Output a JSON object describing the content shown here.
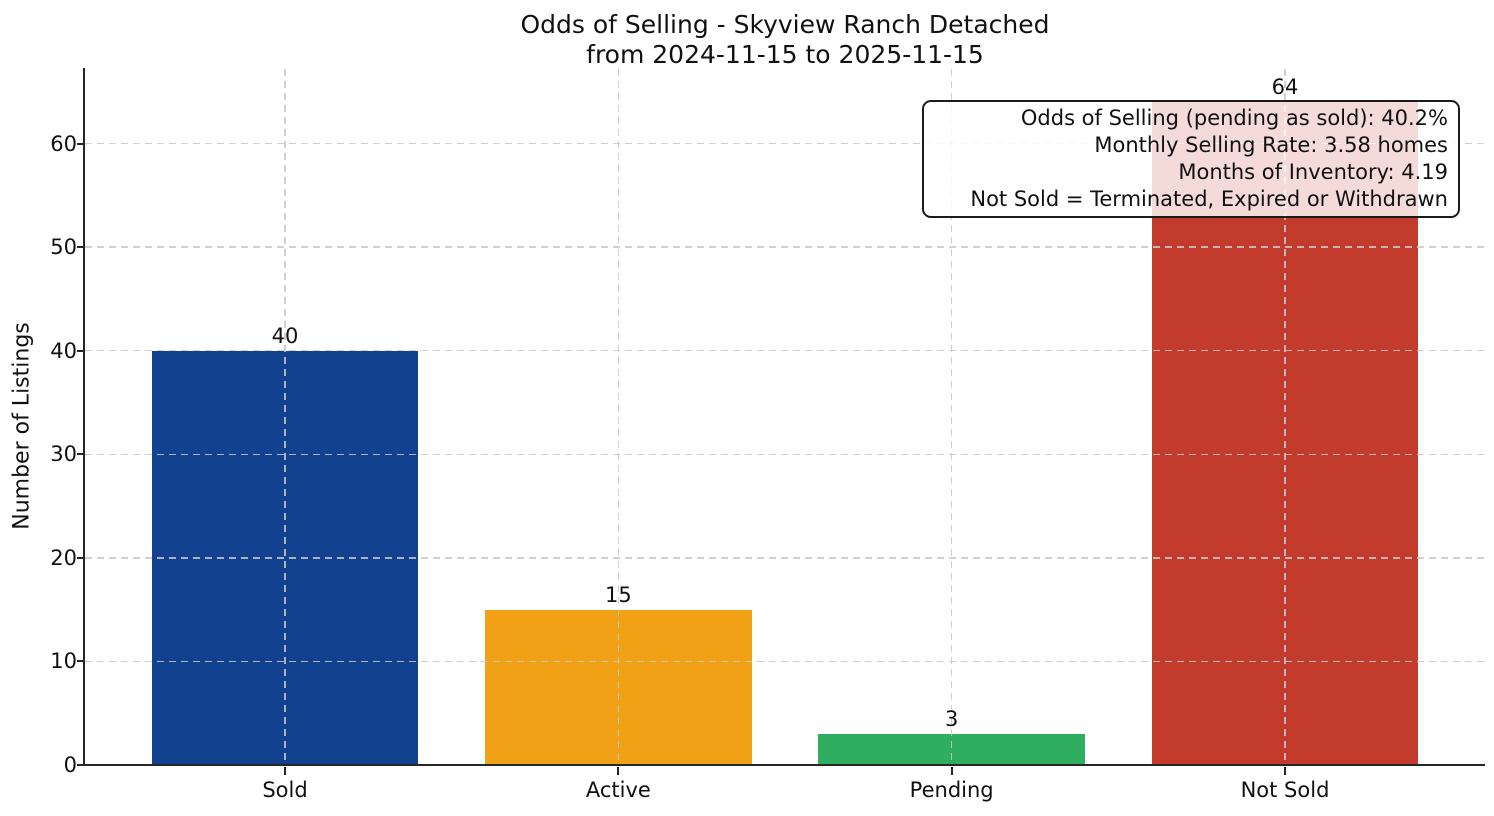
{
  "chart_data": {
    "type": "bar",
    "title_line1": "Odds of Selling - Skyview Ranch Detached",
    "title_line2": "from 2024-11-15 to 2025-11-15",
    "categories": [
      "Sold",
      "Active",
      "Pending",
      "Not Sold"
    ],
    "values": [
      40,
      15,
      3,
      64
    ],
    "bar_colors": [
      "#12418f",
      "#f0a115",
      "#2fae60",
      "#c33b2c"
    ],
    "xlabel": "",
    "ylabel": "Number of Listings",
    "ylim": [
      0,
      67.2
    ],
    "yticks": [
      0,
      10,
      20,
      30,
      40,
      50,
      60
    ],
    "grid": true,
    "grid_linestyle": "dashed",
    "legend": false,
    "stats_box_lines": [
      "Odds of Selling (pending as sold): 40.2%",
      "Monthly Selling Rate: 3.58 homes",
      "Months of Inventory: 4.19",
      "Not Sold = Terminated, Expired or Withdrawn"
    ]
  },
  "colors": {
    "spine": "#262626",
    "grid": "#c8c8c8",
    "text": "#111111",
    "background": "#ffffff"
  }
}
